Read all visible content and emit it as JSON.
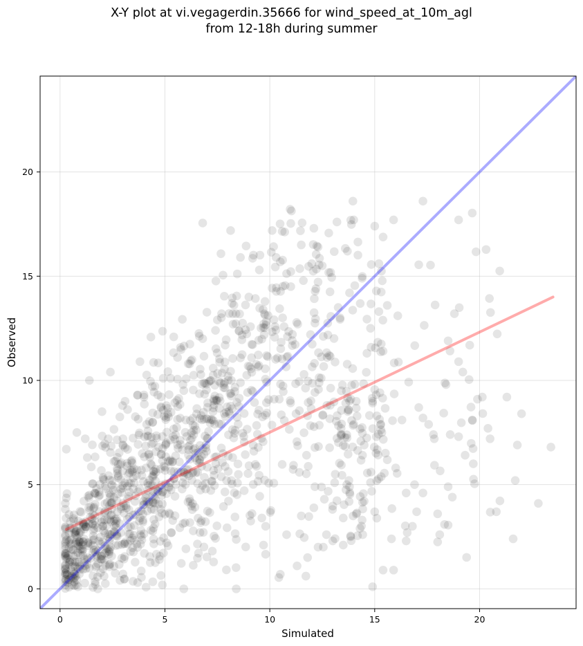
{
  "chart_data": {
    "type": "scatter",
    "title_line1": "X-Y plot at vi.vegagerdin.35666 for wind_speed_at_10m_agl",
    "title_line2": "from 12-18h during summer",
    "xlabel": "Simulated",
    "ylabel": "Observed",
    "xlim": [
      -0.95,
      24.6
    ],
    "ylim": [
      -0.95,
      24.6
    ],
    "xticks": [
      0,
      5,
      10,
      15,
      20
    ],
    "yticks": [
      0,
      5,
      10,
      15,
      20
    ],
    "grid": true,
    "point_color": "#000000",
    "point_alpha": 0.1,
    "identity_line": {
      "color": "#0000ff",
      "alpha": 0.33,
      "x": [
        -0.95,
        24.6
      ],
      "y": [
        -0.95,
        24.6
      ]
    },
    "fit_line": {
      "color": "#ff0000",
      "alpha": 0.33,
      "x": [
        0.3,
        23.5
      ],
      "y": [
        2.85,
        14.0
      ]
    },
    "n_points": 1400,
    "points_explicit": [
      [
        0.8,
        7.5
      ],
      [
        1.4,
        10.0
      ],
      [
        2.4,
        10.4
      ],
      [
        17.3,
        18.6
      ],
      [
        15.9,
        17.7
      ],
      [
        13.2,
        17.6
      ],
      [
        12.1,
        17.3
      ],
      [
        15.0,
        17.4
      ],
      [
        11.5,
        16.5
      ],
      [
        12.3,
        16.4
      ],
      [
        12.5,
        15.5
      ],
      [
        13.7,
        16.2
      ],
      [
        8.6,
        15.9
      ],
      [
        10.3,
        15.9
      ],
      [
        9.5,
        15.3
      ],
      [
        18.8,
        13.2
      ],
      [
        18.5,
        11.9
      ],
      [
        19.0,
        10.9
      ],
      [
        19.2,
        10.4
      ],
      [
        18.4,
        9.8
      ],
      [
        19.9,
        9.1
      ],
      [
        21.3,
        9.2
      ],
      [
        22.0,
        8.4
      ],
      [
        20.4,
        7.7
      ],
      [
        20.5,
        7.2
      ],
      [
        19.0,
        7.3
      ],
      [
        18.6,
        7.4
      ],
      [
        17.8,
        7.4
      ],
      [
        16.3,
        8.1
      ],
      [
        17.3,
        8.2
      ],
      [
        17.1,
        8.7
      ],
      [
        19.7,
        6.0
      ],
      [
        18.5,
        4.9
      ],
      [
        18.7,
        4.4
      ],
      [
        17.3,
        4.6
      ],
      [
        21.8,
        6.9
      ],
      [
        23.4,
        6.8
      ],
      [
        20.8,
        3.7
      ],
      [
        22.8,
        4.1
      ],
      [
        21.7,
        5.2
      ],
      [
        21.6,
        2.4
      ],
      [
        18.0,
        3.6
      ],
      [
        18.1,
        2.6
      ],
      [
        16.5,
        2.3
      ],
      [
        15.8,
        2.4
      ],
      [
        15.9,
        0.9
      ],
      [
        15.4,
        0.9
      ],
      [
        13.5,
        2.1
      ],
      [
        10.5,
        0.7
      ],
      [
        8.4,
        0.0
      ],
      [
        5.9,
        0.0
      ],
      [
        1.8,
        0.0
      ],
      [
        0.3,
        6.7
      ],
      [
        1.2,
        7.2
      ],
      [
        2.3,
        7.2
      ],
      [
        3.0,
        7.2
      ],
      [
        3.7,
        9.3
      ],
      [
        3.1,
        9.0
      ],
      [
        5.6,
        11.1
      ],
      [
        6.8,
        12.0
      ],
      [
        7.5,
        12.9
      ],
      [
        7.7,
        13.2
      ],
      [
        8.2,
        13.7
      ],
      [
        9.0,
        14.0
      ],
      [
        11.0,
        14.5
      ],
      [
        12.2,
        14.4
      ],
      [
        13.8,
        14.2
      ],
      [
        14.4,
        14.9
      ],
      [
        15.2,
        15.6
      ],
      [
        15.6,
        13.6
      ],
      [
        15.2,
        13.3
      ],
      [
        14.8,
        12.5
      ],
      [
        15.4,
        11.4
      ],
      [
        16.1,
        13.1
      ],
      [
        14.9,
        9.0
      ],
      [
        15.1,
        8.3
      ],
      [
        14.0,
        7.9
      ],
      [
        13.4,
        7.7
      ],
      [
        16.0,
        5.8
      ],
      [
        16.5,
        4.6
      ],
      [
        16.9,
        5.0
      ],
      [
        17.0,
        3.7
      ],
      [
        16.8,
        3.0
      ],
      [
        15.0,
        3.7
      ],
      [
        14.4,
        3.3
      ],
      [
        14.3,
        2.9
      ],
      [
        13.5,
        3.4
      ],
      [
        13.0,
        2.3
      ],
      [
        12.7,
        2.6
      ],
      [
        12.3,
        2.0
      ],
      [
        11.8,
        1.5
      ],
      [
        11.3,
        1.1
      ],
      [
        10.8,
        2.6
      ],
      [
        9.7,
        2.1
      ],
      [
        9.8,
        3.0
      ],
      [
        11.5,
        3.5
      ],
      [
        12.6,
        4.3
      ],
      [
        13.8,
        4.9
      ],
      [
        14.5,
        4.2
      ],
      [
        14.8,
        5.1
      ]
    ]
  }
}
